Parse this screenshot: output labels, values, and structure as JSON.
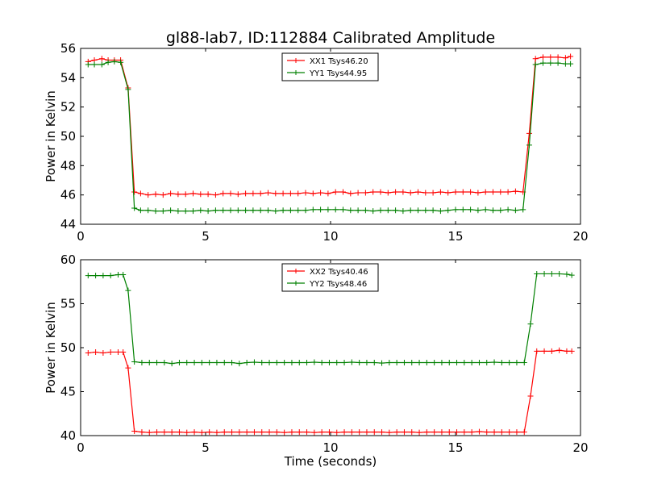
{
  "figure": {
    "title": "gl88-lab7, ID:112884 Calibrated Amplitude"
  },
  "chart_data": [
    {
      "type": "line",
      "title": "gl88-lab7, ID:112884 Calibrated Amplitude",
      "xlabel": "",
      "ylabel": "Power in Kelvin",
      "xlim": [
        0,
        20
      ],
      "ylim": [
        44,
        56
      ],
      "xticks": [
        0,
        5,
        10,
        15,
        20
      ],
      "xtick_labels": [
        "0",
        "5",
        "10",
        "15",
        "20"
      ],
      "yticks": [
        44,
        46,
        48,
        50,
        52,
        54,
        56
      ],
      "ytick_labels": [
        "44",
        "46",
        "48",
        "50",
        "52",
        "54",
        "56"
      ],
      "grid": false,
      "legend_position": "top-center",
      "x": [
        0.3,
        0.55,
        0.85,
        1.1,
        1.35,
        1.6,
        1.9,
        2.15,
        2.4,
        2.7,
        3.0,
        3.3,
        3.6,
        3.9,
        4.2,
        4.5,
        4.8,
        5.1,
        5.4,
        5.7,
        6.0,
        6.3,
        6.6,
        6.9,
        7.2,
        7.5,
        7.8,
        8.1,
        8.4,
        8.7,
        9.0,
        9.3,
        9.6,
        9.9,
        10.2,
        10.5,
        10.8,
        11.1,
        11.4,
        11.7,
        12.0,
        12.3,
        12.6,
        12.9,
        13.2,
        13.5,
        13.8,
        14.1,
        14.4,
        14.7,
        15.0,
        15.3,
        15.6,
        15.9,
        16.2,
        16.5,
        16.8,
        17.1,
        17.4,
        17.7,
        17.95,
        18.2,
        18.5,
        18.8,
        19.1,
        19.4,
        19.6
      ],
      "series": [
        {
          "name": "XX1 Tsys46.20",
          "color": "#ff0000",
          "values": [
            55.1,
            55.2,
            55.3,
            55.2,
            55.2,
            55.2,
            53.3,
            46.2,
            46.1,
            46.0,
            46.05,
            46.0,
            46.1,
            46.05,
            46.05,
            46.1,
            46.05,
            46.05,
            46.0,
            46.1,
            46.1,
            46.05,
            46.1,
            46.1,
            46.1,
            46.15,
            46.1,
            46.1,
            46.1,
            46.1,
            46.15,
            46.1,
            46.15,
            46.1,
            46.2,
            46.2,
            46.1,
            46.15,
            46.15,
            46.2,
            46.2,
            46.15,
            46.2,
            46.2,
            46.15,
            46.2,
            46.15,
            46.15,
            46.2,
            46.15,
            46.2,
            46.2,
            46.2,
            46.15,
            46.2,
            46.2,
            46.2,
            46.2,
            46.25,
            46.2,
            50.2,
            55.3,
            55.4,
            55.4,
            55.4,
            55.35,
            55.45
          ]
        },
        {
          "name": "YY1 Tsys44.95",
          "color": "#008000",
          "values": [
            54.9,
            54.9,
            54.9,
            55.05,
            55.1,
            55.05,
            53.2,
            45.1,
            44.95,
            44.95,
            44.9,
            44.9,
            44.95,
            44.9,
            44.9,
            44.9,
            44.95,
            44.9,
            44.95,
            44.95,
            44.95,
            44.95,
            44.95,
            44.95,
            44.95,
            44.95,
            44.9,
            44.95,
            44.95,
            44.95,
            44.95,
            45.0,
            45.0,
            45.0,
            45.0,
            45.0,
            44.95,
            44.95,
            44.95,
            44.9,
            44.95,
            44.95,
            44.95,
            44.9,
            44.95,
            44.95,
            44.95,
            44.95,
            44.9,
            44.95,
            45.0,
            45.0,
            45.0,
            44.95,
            45.0,
            44.95,
            44.95,
            45.0,
            44.95,
            45.0,
            49.4,
            54.9,
            55.0,
            55.0,
            55.0,
            54.95,
            54.95
          ]
        }
      ]
    },
    {
      "type": "line",
      "title": "",
      "xlabel": "Time (seconds)",
      "ylabel": "Power in Kelvin",
      "xlim": [
        0,
        20
      ],
      "ylim": [
        40,
        60
      ],
      "xticks": [
        0,
        5,
        10,
        15,
        20
      ],
      "xtick_labels": [
        "0",
        "5",
        "10",
        "15",
        "20"
      ],
      "yticks": [
        40,
        45,
        50,
        55,
        60
      ],
      "ytick_labels": [
        "40",
        "45",
        "50",
        "55",
        "60"
      ],
      "grid": false,
      "legend_position": "top-center",
      "x": [
        0.3,
        0.6,
        0.9,
        1.2,
        1.5,
        1.7,
        1.9,
        2.15,
        2.45,
        2.75,
        3.05,
        3.35,
        3.65,
        3.95,
        4.25,
        4.55,
        4.85,
        5.15,
        5.45,
        5.75,
        6.05,
        6.35,
        6.65,
        6.95,
        7.25,
        7.55,
        7.85,
        8.15,
        8.45,
        8.75,
        9.05,
        9.35,
        9.65,
        9.95,
        10.25,
        10.55,
        10.85,
        11.15,
        11.45,
        11.75,
        12.05,
        12.35,
        12.65,
        12.95,
        13.25,
        13.55,
        13.85,
        14.15,
        14.45,
        14.75,
        15.05,
        15.35,
        15.65,
        15.95,
        16.25,
        16.55,
        16.85,
        17.15,
        17.45,
        17.75,
        18.0,
        18.25,
        18.55,
        18.85,
        19.15,
        19.45,
        19.65
      ],
      "series": [
        {
          "name": "XX2 Tsys40.46",
          "color": "#ff0000",
          "values": [
            49.4,
            49.5,
            49.4,
            49.5,
            49.5,
            49.5,
            47.7,
            40.5,
            40.4,
            40.35,
            40.4,
            40.4,
            40.4,
            40.4,
            40.35,
            40.4,
            40.35,
            40.4,
            40.35,
            40.4,
            40.4,
            40.4,
            40.4,
            40.4,
            40.4,
            40.4,
            40.4,
            40.35,
            40.4,
            40.4,
            40.4,
            40.35,
            40.4,
            40.4,
            40.35,
            40.4,
            40.4,
            40.4,
            40.4,
            40.4,
            40.4,
            40.35,
            40.4,
            40.4,
            40.4,
            40.35,
            40.4,
            40.4,
            40.4,
            40.4,
            40.4,
            40.4,
            40.4,
            40.45,
            40.4,
            40.4,
            40.4,
            40.4,
            40.4,
            40.4,
            44.5,
            49.6,
            49.6,
            49.6,
            49.7,
            49.6,
            49.6
          ]
        },
        {
          "name": "YY2 Tsys48.46",
          "color": "#008000",
          "values": [
            58.2,
            58.2,
            58.2,
            58.2,
            58.3,
            58.3,
            56.5,
            48.4,
            48.3,
            48.3,
            48.3,
            48.3,
            48.2,
            48.3,
            48.3,
            48.3,
            48.3,
            48.3,
            48.3,
            48.3,
            48.3,
            48.2,
            48.3,
            48.35,
            48.3,
            48.3,
            48.3,
            48.3,
            48.3,
            48.3,
            48.3,
            48.35,
            48.3,
            48.3,
            48.3,
            48.3,
            48.35,
            48.3,
            48.3,
            48.3,
            48.25,
            48.3,
            48.3,
            48.3,
            48.3,
            48.3,
            48.3,
            48.3,
            48.3,
            48.3,
            48.3,
            48.3,
            48.3,
            48.3,
            48.3,
            48.35,
            48.3,
            48.3,
            48.3,
            48.3,
            52.7,
            58.4,
            58.4,
            58.4,
            58.4,
            58.35,
            58.25
          ]
        }
      ]
    }
  ]
}
